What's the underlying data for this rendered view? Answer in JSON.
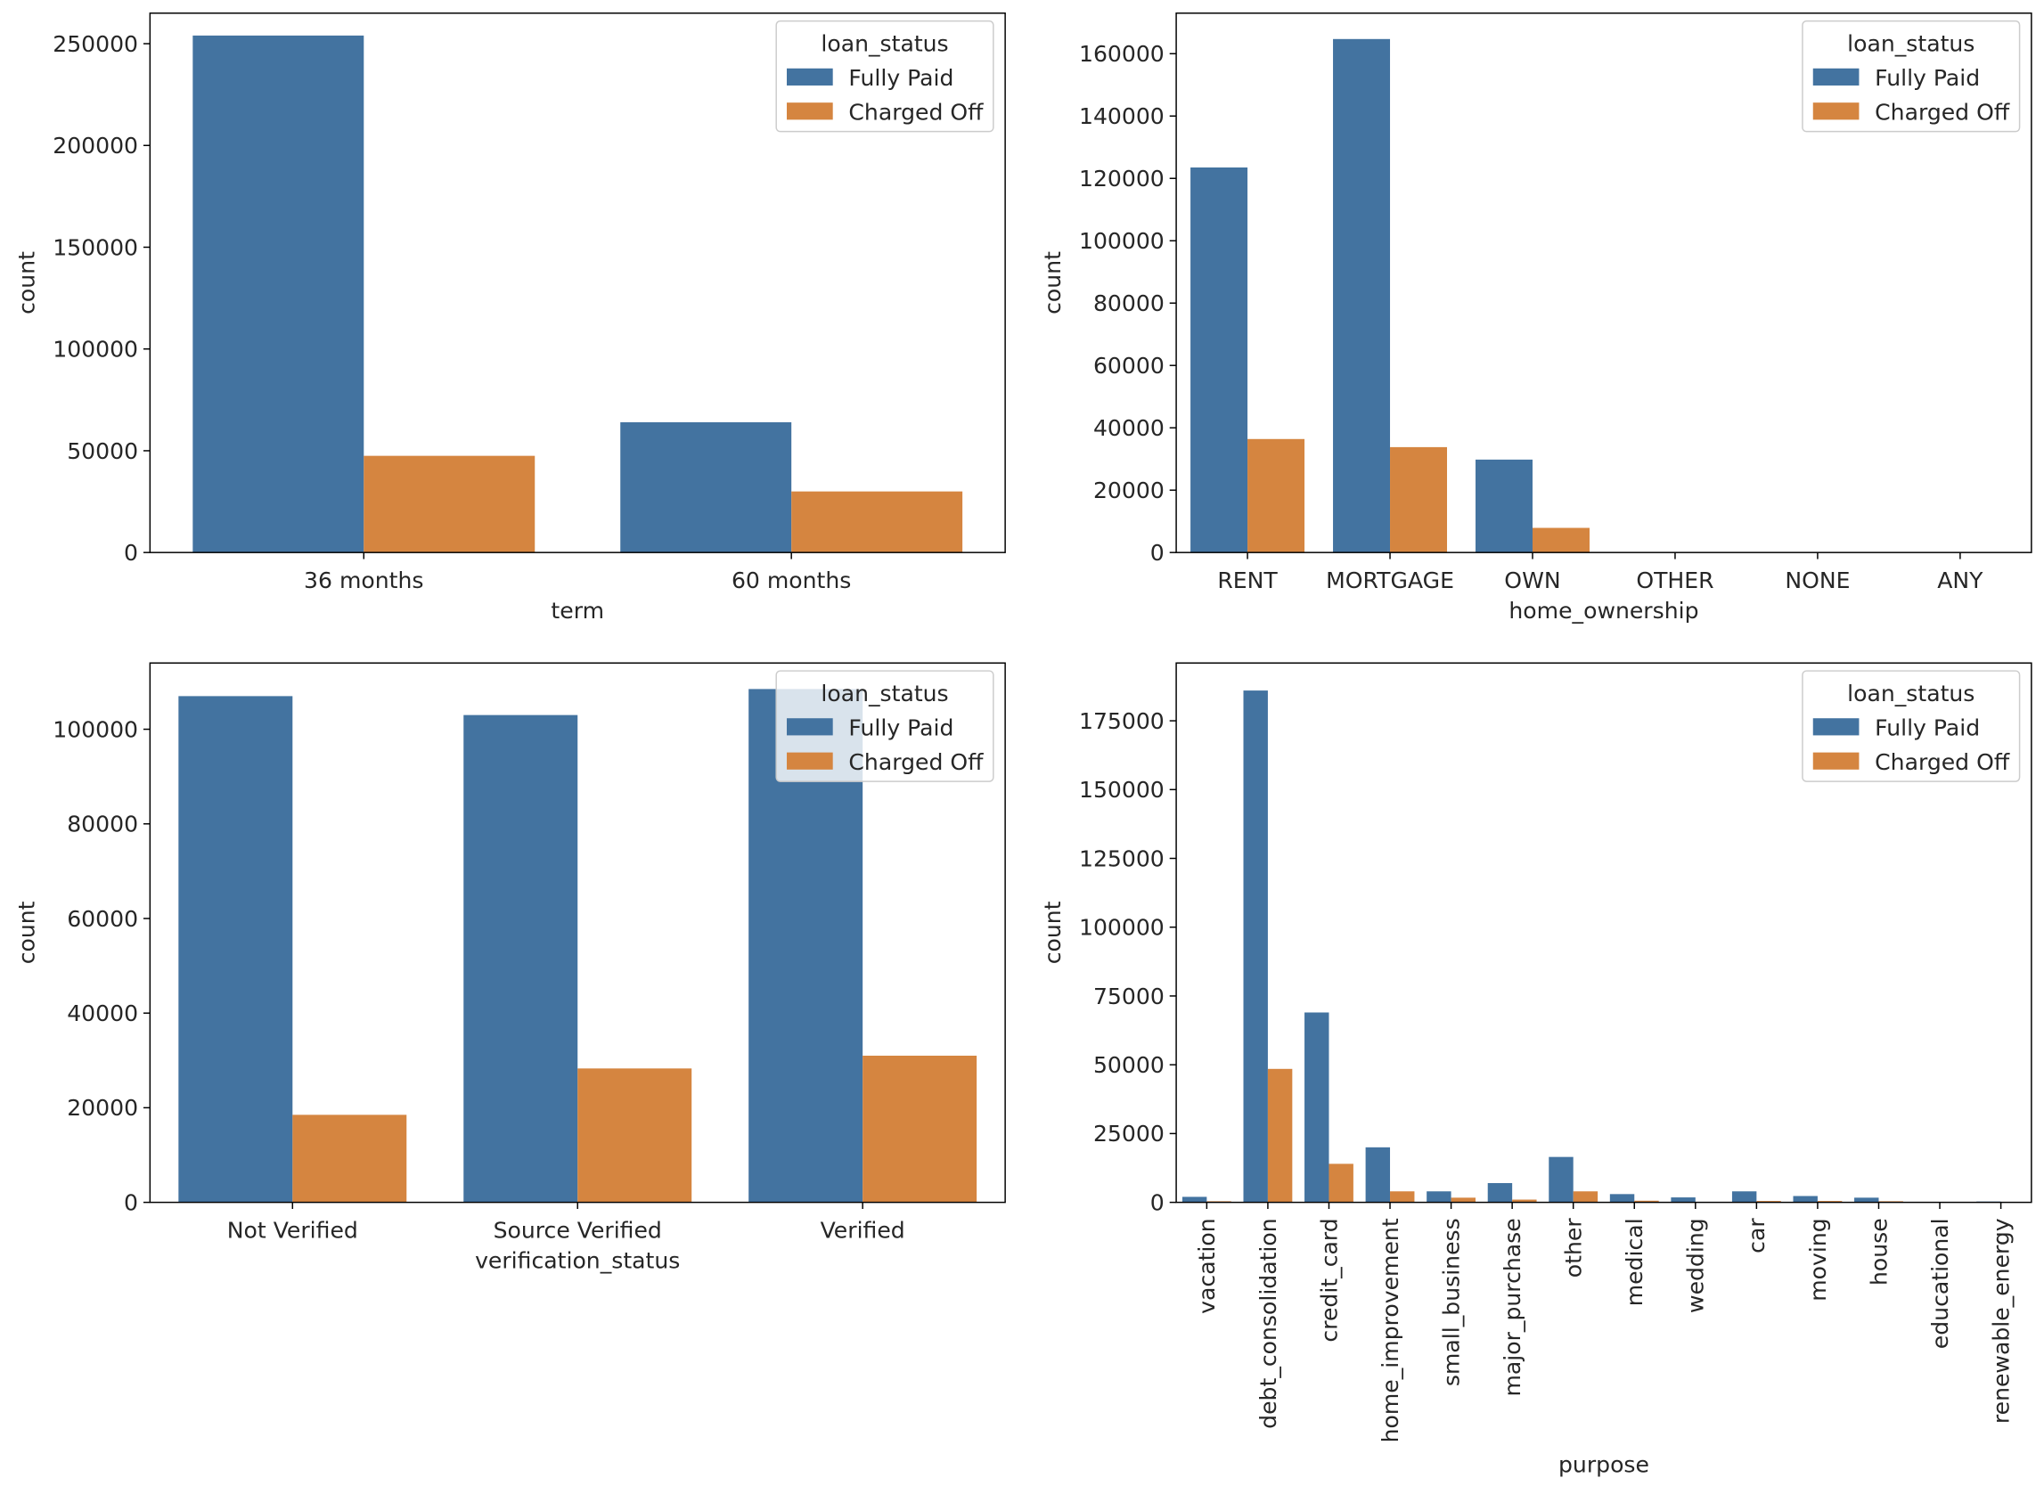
{
  "colors": {
    "Fully Paid": "#4373a0",
    "Charged Off": "#d58540"
  },
  "chart_data": [
    {
      "type": "bar",
      "xlabel": "term",
      "ylabel": "count",
      "ylim": [
        0,
        265000
      ],
      "yticks": [
        0,
        50000,
        100000,
        150000,
        200000,
        250000
      ],
      "categories": [
        "36 months",
        "60 months"
      ],
      "series": [
        {
          "name": "Fully Paid",
          "values": [
            254000,
            64000
          ]
        },
        {
          "name": "Charged Off",
          "values": [
            47500,
            30000
          ]
        }
      ],
      "legend": {
        "title": "loan_status",
        "location": "upper right"
      },
      "grid": false
    },
    {
      "type": "bar",
      "xlabel": "home_ownership",
      "ylabel": "count",
      "ylim": [
        0,
        173000
      ],
      "yticks": [
        0,
        20000,
        40000,
        60000,
        80000,
        100000,
        120000,
        140000,
        160000
      ],
      "categories": [
        "RENT",
        "MORTGAGE",
        "OWN",
        "OTHER",
        "NONE",
        "ANY"
      ],
      "series": [
        {
          "name": "Fully Paid",
          "values": [
            123500,
            164700,
            29800,
            100,
            30,
            3
          ]
        },
        {
          "name": "Charged Off",
          "values": [
            36400,
            33800,
            7900,
            20,
            5,
            0
          ]
        }
      ],
      "legend": {
        "title": "loan_status",
        "location": "upper right"
      },
      "grid": false
    },
    {
      "type": "bar",
      "xlabel": "verification_status",
      "ylabel": "count",
      "ylim": [
        0,
        114000
      ],
      "yticks": [
        0,
        20000,
        40000,
        60000,
        80000,
        100000
      ],
      "categories": [
        "Not Verified",
        "Source Verified",
        "Verified"
      ],
      "series": [
        {
          "name": "Fully Paid",
          "values": [
            107000,
            103000,
            108500
          ]
        },
        {
          "name": "Charged Off",
          "values": [
            18500,
            28300,
            31000
          ]
        }
      ],
      "legend": {
        "title": "loan_status",
        "location": "upper right"
      },
      "grid": false
    },
    {
      "type": "bar",
      "xlabel": "purpose",
      "ylabel": "count",
      "ylim": [
        0,
        196000
      ],
      "yticks": [
        0,
        25000,
        50000,
        75000,
        100000,
        125000,
        150000,
        175000
      ],
      "categories": [
        "vacation",
        "debt_consolidation",
        "credit_card",
        "home_improvement",
        "small_business",
        "major_purchase",
        "other",
        "medical",
        "wedding",
        "car",
        "moving",
        "house",
        "educational",
        "renewable_energy"
      ],
      "series": [
        {
          "name": "Fully Paid",
          "values": [
            2000,
            186000,
            69000,
            20000,
            4000,
            7000,
            16500,
            3000,
            1800,
            4000,
            2300,
            1700,
            200,
            300
          ]
        },
        {
          "name": "Charged Off",
          "values": [
            400,
            48500,
            14000,
            4000,
            1700,
            1000,
            4000,
            600,
            150,
            500,
            500,
            400,
            50,
            80
          ]
        }
      ],
      "legend": {
        "title": "loan_status",
        "location": "upper right"
      },
      "grid": false
    }
  ]
}
